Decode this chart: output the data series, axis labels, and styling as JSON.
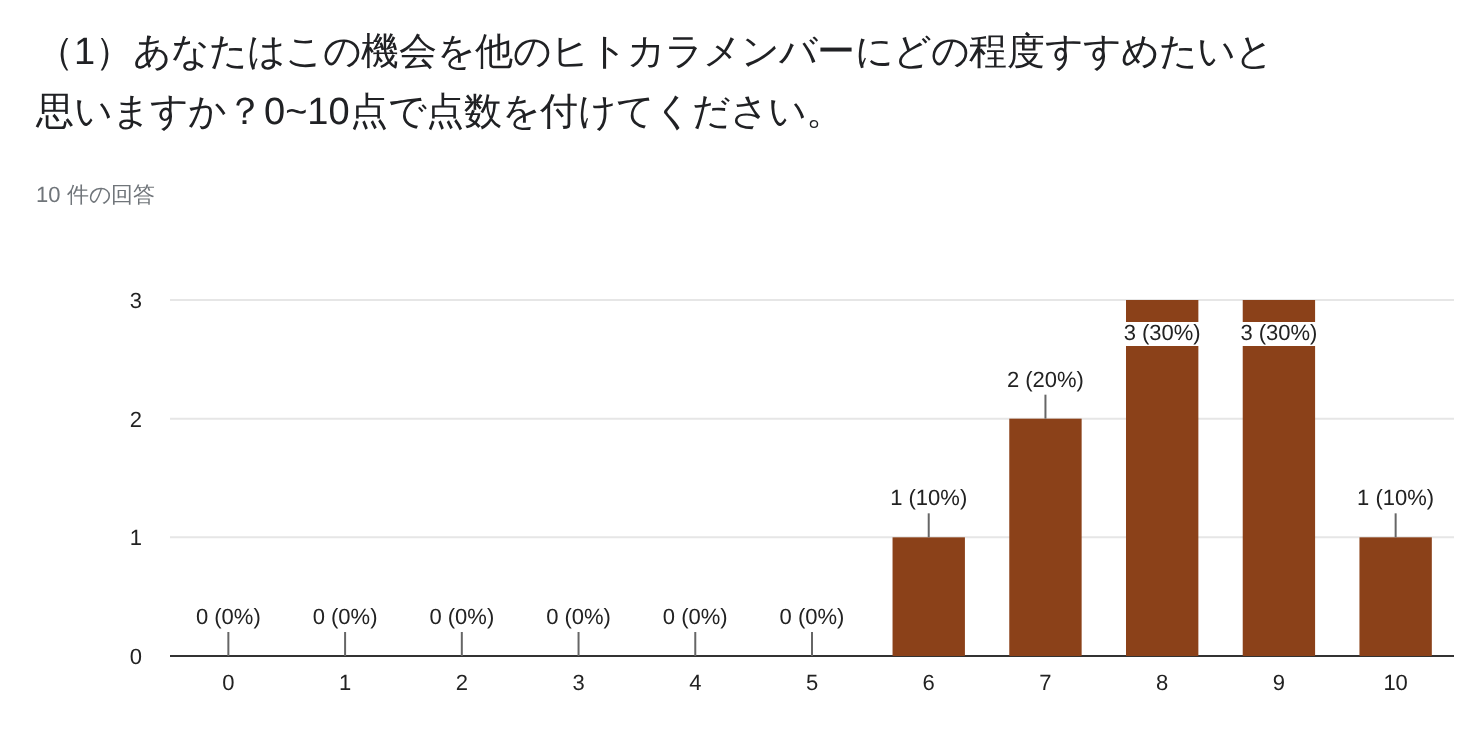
{
  "chart_data": {
    "type": "bar",
    "title": "（1）あなたはこの機会を他のヒトカラメンバーにどの程度すすめたいと思いますか？0~10点で点数を付けてください。",
    "subtitle": "10 件の回答",
    "categories": [
      "0",
      "1",
      "2",
      "3",
      "4",
      "5",
      "6",
      "7",
      "8",
      "9",
      "10"
    ],
    "values": [
      0,
      0,
      0,
      0,
      0,
      0,
      1,
      2,
      3,
      3,
      1
    ],
    "value_labels": [
      "0 (0%)",
      "0 (0%)",
      "0 (0%)",
      "0 (0%)",
      "0 (0%)",
      "0 (0%)",
      "1 (10%)",
      "2 (20%)",
      "3 (30%)",
      "3 (30%)",
      "1 (10%)"
    ],
    "color": "#8b4119",
    "ylim": [
      0,
      3
    ],
    "yticks": [
      0,
      1,
      2,
      3
    ],
    "grid": "y"
  }
}
